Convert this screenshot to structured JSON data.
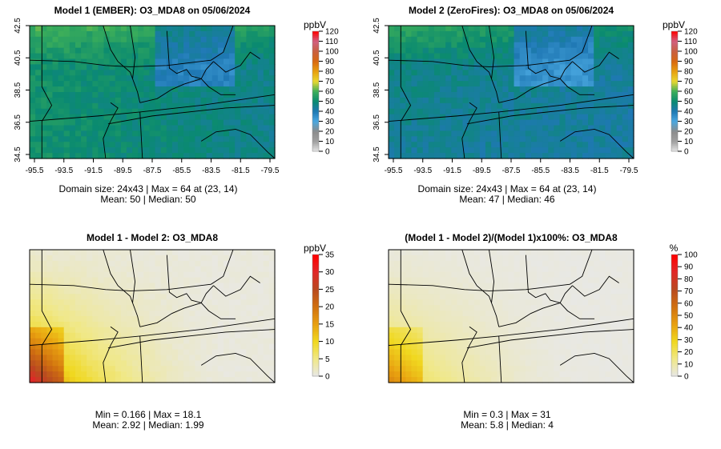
{
  "chart_data": [
    {
      "type": "heatmap",
      "title": "Model 1 (EMBER): O3_MDA8 on 05/06/2024",
      "domain": "24x43",
      "units": "ppbV",
      "xticks": [
        "-95.5",
        "-93.5",
        "-91.5",
        "-89.5",
        "-87.5",
        "-85.5",
        "-83.5",
        "-81.5",
        "-79.5"
      ],
      "yticks": [
        "42.5",
        "40.5",
        "38.5",
        "36.5",
        "34.5"
      ],
      "xlim": [
        -95.5,
        -79.5
      ],
      "ylim": [
        34.5,
        42.5
      ],
      "colorbar_ticks": [
        "0",
        "10",
        "20",
        "30",
        "40",
        "50",
        "60",
        "70",
        "80",
        "90",
        "100",
        "110",
        "120"
      ],
      "crange": [
        0,
        120
      ],
      "stats_line1": "Domain size: 24x43 | Max = 64 at (23, 14)",
      "stats_line2": "Mean: 50 |  Median: 50",
      "field": {
        "mean": 50,
        "max": 64
      }
    },
    {
      "type": "heatmap",
      "title": "Model 2 (ZeroFires): O3_MDA8 on 05/06/2024",
      "domain": "24x43",
      "units": "ppbV",
      "xticks": [
        "-95.5",
        "-93.5",
        "-91.5",
        "-89.5",
        "-87.5",
        "-85.5",
        "-83.5",
        "-81.5",
        "-79.5"
      ],
      "yticks": [
        "42.5",
        "40.5",
        "38.5",
        "36.5",
        "34.5"
      ],
      "xlim": [
        -95.5,
        -79.5
      ],
      "ylim": [
        34.5,
        42.5
      ],
      "colorbar_ticks": [
        "0",
        "10",
        "20",
        "30",
        "40",
        "50",
        "60",
        "70",
        "80",
        "90",
        "100",
        "110",
        "120"
      ],
      "crange": [
        0,
        120
      ],
      "stats_line1": "Domain size: 24x43 | Max = 64 at (23, 14)",
      "stats_line2": "Mean: 47 |  Median: 46",
      "field": {
        "mean": 47,
        "max": 64
      }
    },
    {
      "type": "heatmap",
      "title": "Model 1 - Model 2: O3_MDA8",
      "units": "ppbV",
      "colorbar_ticks": [
        "0",
        "5",
        "10",
        "15",
        "20",
        "25",
        "30",
        "35"
      ],
      "crange": [
        0,
        35
      ],
      "stats_line1": "Min = 0.166 | Max = 18.1",
      "stats_line2": "Mean: 2.92 |  Median: 1.99",
      "field": {
        "min": 0.166,
        "max": 18.1,
        "mean": 2.92
      }
    },
    {
      "type": "heatmap",
      "title": "(Model 1 - Model 2)/(Model 1)x100%: O3_MDA8",
      "units": "%",
      "colorbar_ticks": [
        "0",
        "10",
        "20",
        "30",
        "40",
        "50",
        "60",
        "70",
        "80",
        "90",
        "100"
      ],
      "crange": [
        0,
        100
      ],
      "stats_line1": "Min = 0.3 | Max = 31",
      "stats_line2": "Mean: 5.8 |  Median: 4",
      "field": {
        "min": 0.3,
        "max": 31,
        "mean": 5.8
      }
    }
  ],
  "colors": {
    "abs_scale": [
      "#e8e8e8",
      "#a0a0a0",
      "#8c8c8c",
      "#4aa8e0",
      "#1f78b4",
      "#0a8a70",
      "#3cae5a",
      "#e8d830",
      "#e8a010",
      "#d86810",
      "#c86040",
      "#d06080",
      "#ff0000"
    ],
    "diff_scale": [
      "#e8e8e8",
      "#f0e888",
      "#f0d820",
      "#e8a010",
      "#d07010",
      "#b84a20",
      "#e02828",
      "#ff0000"
    ]
  }
}
